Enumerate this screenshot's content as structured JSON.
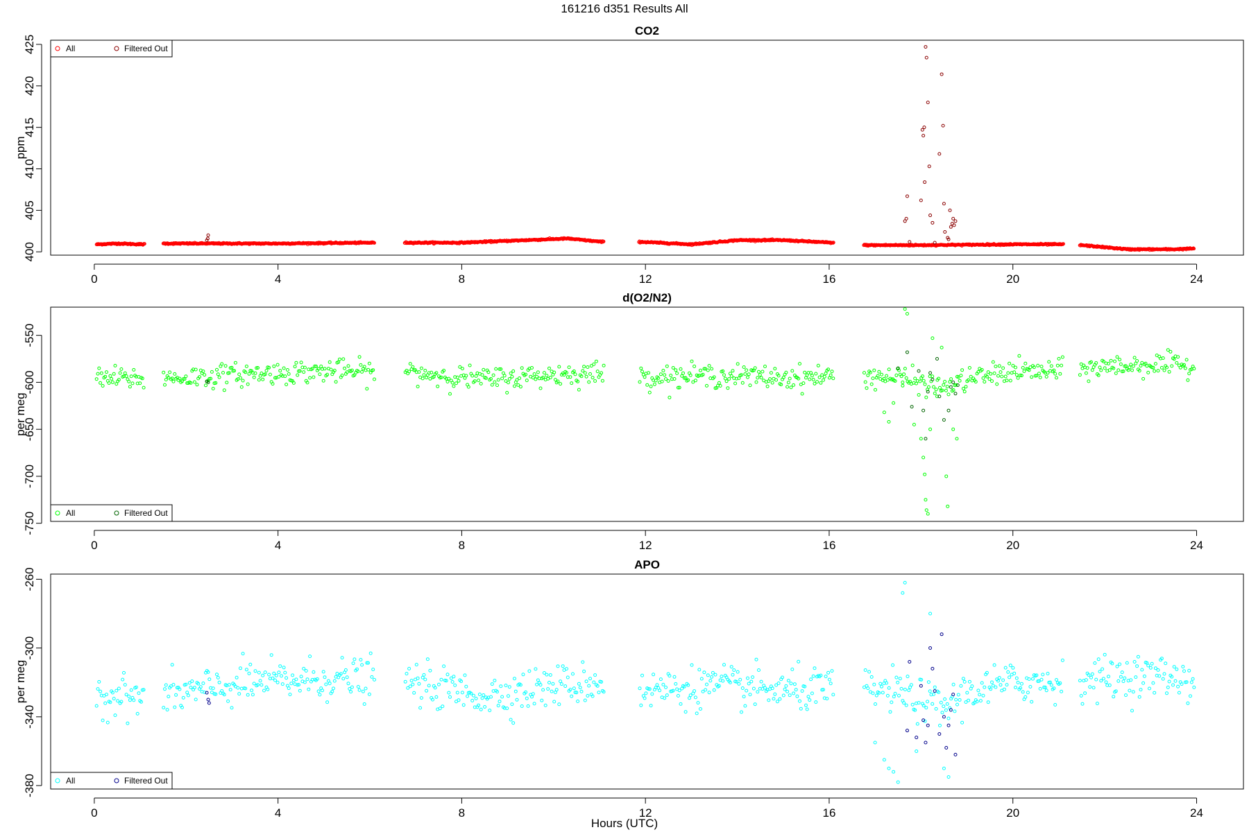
{
  "title": "161216   d351   Results All",
  "xlabel": "Hours (UTC)",
  "chart_data": [
    {
      "type": "scatter",
      "title": "CO2",
      "ylabel": "ppm",
      "xlabel": "",
      "xlim": [
        -0.95,
        25.02
      ],
      "ylim": [
        399.6,
        425.5
      ],
      "xticks": [
        "0",
        "4",
        "8",
        "12",
        "16",
        "20",
        "24"
      ],
      "yticks": [
        "400",
        "405",
        "410",
        "415",
        "420",
        "425"
      ],
      "grid": false,
      "legend_position": "top-left",
      "legend": [
        "All",
        "Filtered Out"
      ],
      "colors": {
        "all": "#ff0000",
        "filtered": "#8b0000"
      },
      "gaps": [
        [
          1.1,
          1.5
        ],
        [
          6.1,
          6.75
        ],
        [
          11.1,
          11.85
        ],
        [
          16.1,
          16.75
        ],
        [
          21.1,
          21.45
        ]
      ],
      "baseline": [
        [
          0.05,
          400.9
        ],
        [
          0.5,
          401.0
        ],
        [
          1.05,
          400.9
        ],
        [
          1.5,
          401.0
        ],
        [
          2.5,
          401.0
        ],
        [
          4.0,
          401.0
        ],
        [
          6.05,
          401.1
        ],
        [
          6.8,
          401.1
        ],
        [
          8.0,
          401.1
        ],
        [
          10.3,
          401.6
        ],
        [
          11.05,
          401.2
        ],
        [
          11.9,
          401.2
        ],
        [
          13.0,
          400.9
        ],
        [
          14.0,
          401.4
        ],
        [
          15.0,
          401.4
        ],
        [
          16.05,
          401.1
        ],
        [
          16.8,
          400.8
        ],
        [
          18.0,
          400.8
        ],
        [
          20.0,
          400.9
        ],
        [
          21.05,
          400.9
        ],
        [
          21.5,
          400.8
        ],
        [
          22.5,
          400.3
        ],
        [
          23.5,
          400.3
        ],
        [
          23.95,
          400.4
        ]
      ],
      "filtered_points": [
        [
          2.45,
          401.4
        ],
        [
          2.47,
          401.6
        ],
        [
          2.48,
          402.0
        ],
        [
          17.65,
          403.7
        ],
        [
          17.68,
          404.0
        ],
        [
          17.7,
          406.7
        ],
        [
          17.75,
          401.2
        ],
        [
          18.0,
          406.2
        ],
        [
          18.03,
          414.7
        ],
        [
          18.05,
          414.0
        ],
        [
          18.07,
          415.0
        ],
        [
          18.08,
          408.4
        ],
        [
          18.1,
          424.7
        ],
        [
          18.12,
          423.4
        ],
        [
          18.15,
          418.0
        ],
        [
          18.18,
          410.3
        ],
        [
          18.2,
          404.4
        ],
        [
          18.25,
          403.5
        ],
        [
          18.3,
          401.1
        ],
        [
          18.4,
          411.8
        ],
        [
          18.45,
          421.4
        ],
        [
          18.48,
          415.2
        ],
        [
          18.5,
          405.8
        ],
        [
          18.52,
          402.4
        ],
        [
          18.58,
          401.7
        ],
        [
          18.6,
          401.5
        ],
        [
          18.63,
          405.0
        ],
        [
          18.65,
          403.0
        ],
        [
          18.68,
          403.4
        ],
        [
          18.7,
          404.0
        ],
        [
          18.72,
          403.2
        ],
        [
          18.75,
          403.7
        ]
      ]
    },
    {
      "type": "scatter",
      "title": "d(O2/N2)",
      "ylabel": "per meg",
      "xlabel": "",
      "xlim": [
        -0.95,
        25.02
      ],
      "ylim": [
        -748,
        -520
      ],
      "xticks": [
        "0",
        "4",
        "8",
        "12",
        "16",
        "20",
        "24"
      ],
      "yticks": [
        "-550",
        "-600",
        "-650",
        "-700",
        "-750"
      ],
      "grid": false,
      "legend_position": "bottom-left",
      "legend": [
        "All",
        "Filtered Out"
      ],
      "colors": {
        "all": "#00ff00",
        "filtered": "#006400"
      },
      "gaps": [
        [
          1.1,
          1.5
        ],
        [
          6.1,
          6.75
        ],
        [
          11.1,
          11.85
        ],
        [
          16.1,
          16.75
        ],
        [
          21.1,
          21.45
        ]
      ],
      "baseline": [
        [
          0.05,
          -596
        ],
        [
          1.05,
          -596
        ],
        [
          1.5,
          -596
        ],
        [
          3.5,
          -591
        ],
        [
          5.0,
          -588
        ],
        [
          6.05,
          -589
        ],
        [
          6.8,
          -589
        ],
        [
          8.5,
          -597
        ],
        [
          10.0,
          -592
        ],
        [
          11.05,
          -590
        ],
        [
          11.9,
          -594
        ],
        [
          13.5,
          -593
        ],
        [
          15.0,
          -595
        ],
        [
          16.05,
          -594
        ],
        [
          16.8,
          -593
        ],
        [
          17.5,
          -595
        ],
        [
          18.5,
          -606
        ],
        [
          19.0,
          -597
        ],
        [
          20.0,
          -588
        ],
        [
          21.05,
          -589
        ],
        [
          21.5,
          -585
        ],
        [
          23.0,
          -581
        ],
        [
          23.95,
          -583
        ]
      ],
      "scatter_sd": 6,
      "filtered_points": [
        [
          2.45,
          -599
        ],
        [
          2.48,
          -600
        ],
        [
          17.5,
          -585
        ],
        [
          17.7,
          -568
        ],
        [
          17.8,
          -626
        ],
        [
          17.95,
          -588
        ],
        [
          18.05,
          -630
        ],
        [
          18.1,
          -660
        ],
        [
          18.15,
          -610
        ],
        [
          18.2,
          -590
        ],
        [
          18.25,
          -597
        ],
        [
          18.35,
          -575
        ],
        [
          18.4,
          -615
        ],
        [
          18.5,
          -640
        ],
        [
          18.6,
          -630
        ],
        [
          18.65,
          -605
        ],
        [
          18.7,
          -600
        ],
        [
          18.75,
          -612
        ],
        [
          18.8,
          -603
        ]
      ],
      "outliers": [
        [
          17.7,
          -527
        ],
        [
          17.65,
          -522
        ],
        [
          17.2,
          -632
        ],
        [
          17.3,
          -642
        ],
        [
          17.4,
          -622
        ],
        [
          17.6,
          -600
        ],
        [
          17.85,
          -645
        ],
        [
          18.0,
          -660
        ],
        [
          18.05,
          -680
        ],
        [
          18.08,
          -698
        ],
        [
          18.1,
          -725
        ],
        [
          18.12,
          -736
        ],
        [
          18.15,
          -740
        ],
        [
          18.2,
          -650
        ],
        [
          18.25,
          -553
        ],
        [
          18.35,
          -615
        ],
        [
          18.45,
          -563
        ],
        [
          18.55,
          -700
        ],
        [
          18.58,
          -732
        ],
        [
          18.7,
          -650
        ],
        [
          18.78,
          -660
        ]
      ]
    },
    {
      "type": "scatter",
      "title": "APO",
      "ylabel": "per meg",
      "xlabel": "Hours (UTC)",
      "xlim": [
        -0.95,
        25.02
      ],
      "ylim": [
        -382,
        -257
      ],
      "xticks": [
        "0",
        "4",
        "8",
        "12",
        "16",
        "20",
        "24"
      ],
      "yticks": [
        "-260",
        "-300",
        "-340",
        "-380"
      ],
      "grid": false,
      "legend_position": "bottom-left",
      "legend": [
        "All",
        "Filtered Out"
      ],
      "colors": {
        "all": "#00ffff",
        "filtered": "#00008b"
      },
      "gaps": [
        [
          1.1,
          1.5
        ],
        [
          6.1,
          6.75
        ],
        [
          11.1,
          11.85
        ],
        [
          16.1,
          16.75
        ],
        [
          21.1,
          21.45
        ]
      ],
      "baseline": [
        [
          0.05,
          -327
        ],
        [
          1.05,
          -329
        ],
        [
          1.5,
          -328
        ],
        [
          3.5,
          -320
        ],
        [
          5.0,
          -318
        ],
        [
          6.05,
          -318
        ],
        [
          6.8,
          -320
        ],
        [
          8.5,
          -328
        ],
        [
          10.0,
          -322
        ],
        [
          11.05,
          -320
        ],
        [
          11.9,
          -325
        ],
        [
          13.5,
          -322
        ],
        [
          15.0,
          -325
        ],
        [
          16.05,
          -324
        ],
        [
          16.8,
          -324
        ],
        [
          17.5,
          -326
        ],
        [
          18.5,
          -335
        ],
        [
          19.0,
          -326
        ],
        [
          20.0,
          -320
        ],
        [
          21.05,
          -320
        ],
        [
          21.5,
          -318
        ],
        [
          23.0,
          -316
        ],
        [
          23.95,
          -318
        ]
      ],
      "scatter_sd": 6,
      "filtered_points": [
        [
          2.45,
          -326
        ],
        [
          2.48,
          -330
        ],
        [
          2.5,
          -332
        ],
        [
          17.7,
          -348
        ],
        [
          17.75,
          -308
        ],
        [
          17.9,
          -352
        ],
        [
          18.0,
          -322
        ],
        [
          18.05,
          -342
        ],
        [
          18.1,
          -355
        ],
        [
          18.15,
          -345
        ],
        [
          18.2,
          -300
        ],
        [
          18.25,
          -312
        ],
        [
          18.3,
          -325
        ],
        [
          18.4,
          -350
        ],
        [
          18.45,
          -292
        ],
        [
          18.5,
          -340
        ],
        [
          18.55,
          -358
        ],
        [
          18.6,
          -345
        ],
        [
          18.65,
          -336
        ],
        [
          18.7,
          -327
        ],
        [
          18.75,
          -362
        ]
      ],
      "outliers": [
        [
          17.65,
          -262
        ],
        [
          17.6,
          -268
        ],
        [
          17.2,
          -365
        ],
        [
          17.3,
          -370
        ],
        [
          17.0,
          -355
        ],
        [
          17.4,
          -372
        ],
        [
          17.9,
          -360
        ],
        [
          18.2,
          -280
        ],
        [
          18.5,
          -370
        ],
        [
          18.6,
          -375
        ],
        [
          17.5,
          -378
        ]
      ]
    }
  ]
}
